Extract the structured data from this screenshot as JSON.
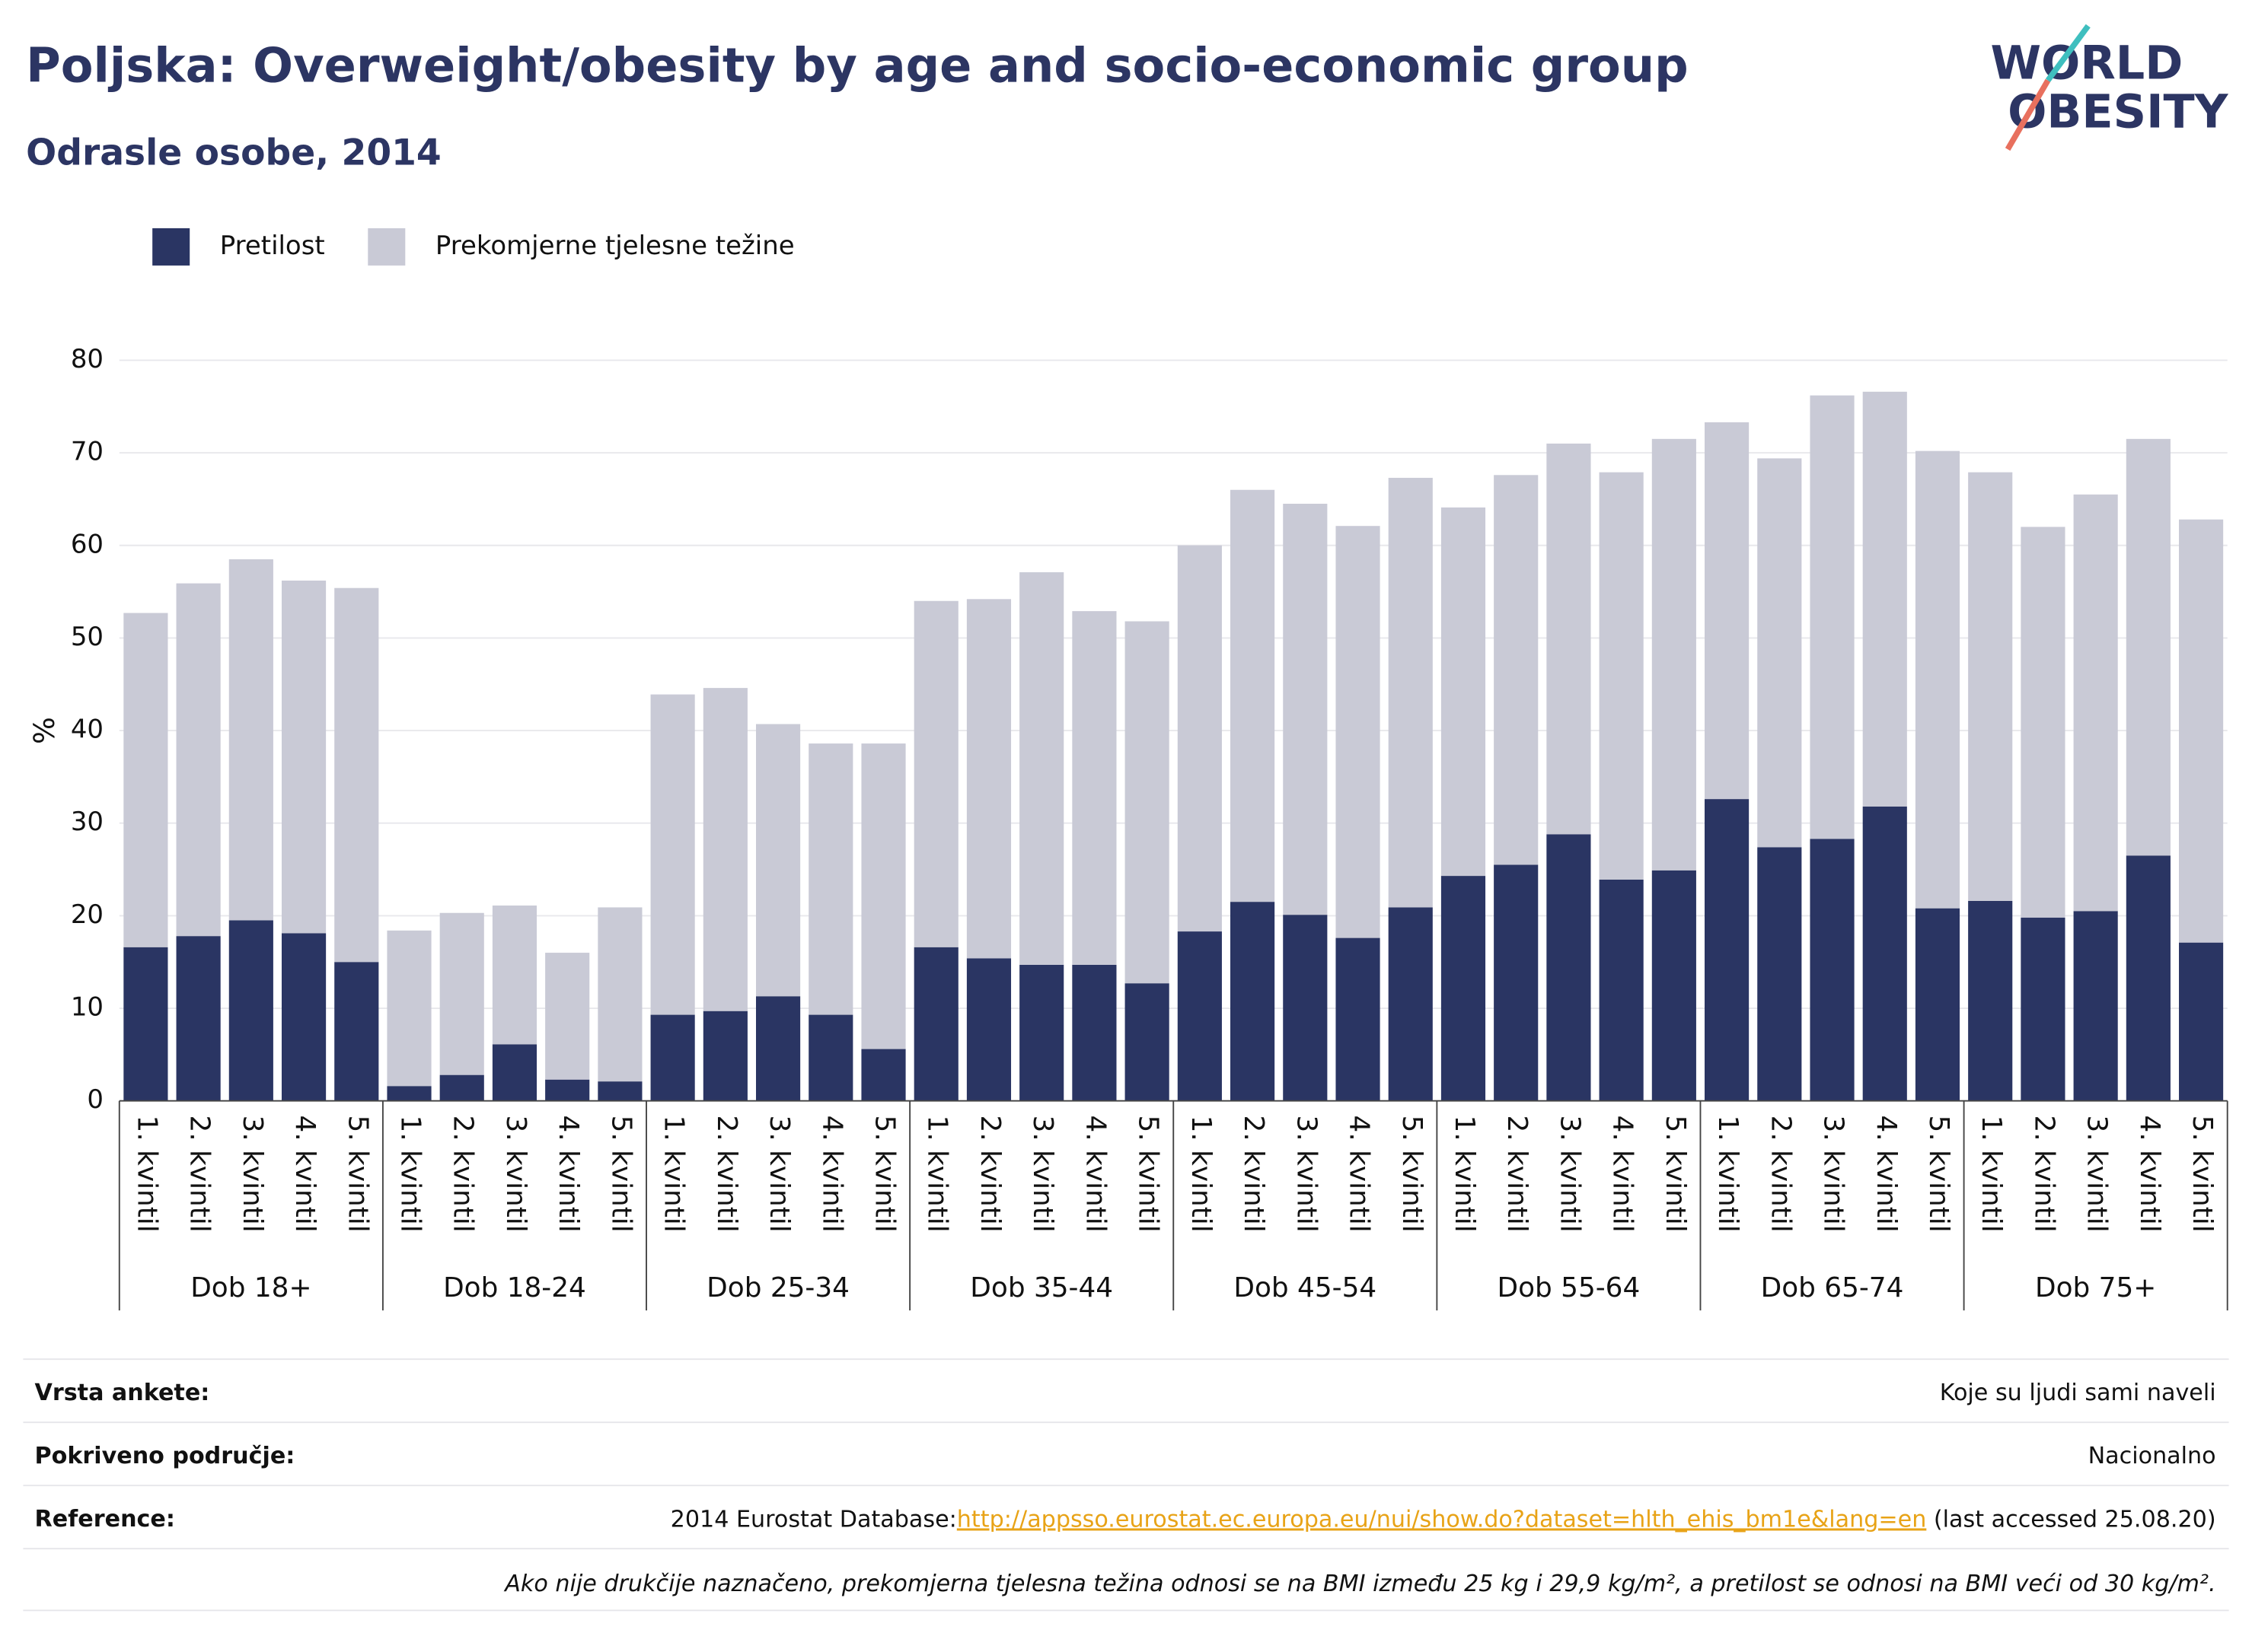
{
  "chart_data": {
    "type": "stacked_bar",
    "title": "Poljska: Overweight/obesity by age and socio-economic group",
    "subtitle": "Odrasle osobe, 2014",
    "y_label": "%",
    "groups": [
      {
        "name": "Dob 18+",
        "categories": [
          "1. kvintil",
          "2. kvintil",
          "3. kvintil",
          "4. kvintil",
          "5. kvintil"
        ]
      },
      {
        "name": "Dob 18-24",
        "categories": [
          "1. kvintil",
          "2. kvintil",
          "3. kvintil",
          "4. kvintil",
          "5. kvintil"
        ]
      },
      {
        "name": "Dob 25-34",
        "categories": [
          "1. kvintil",
          "2. kvintil",
          "3. kvintil",
          "4. kvintil",
          "5. kvintil"
        ]
      },
      {
        "name": "Dob 35-44",
        "categories": [
          "1. kvintil",
          "2. kvintil",
          "3. kvintil",
          "4. kvintil",
          "5. kvintil"
        ]
      },
      {
        "name": "Dob 45-54",
        "categories": [
          "1. kvintil",
          "2. kvintil",
          "3. kvintil",
          "4. kvintil",
          "5. kvintil"
        ]
      },
      {
        "name": "Dob 55-64",
        "categories": [
          "1. kvintil",
          "2. kvintil",
          "3. kvintil",
          "4. kvintil",
          "5. kvintil"
        ]
      },
      {
        "name": "Dob 65-74",
        "categories": [
          "1. kvintil",
          "2. kvintil",
          "3. kvintil",
          "4. kvintil",
          "5. kvintil"
        ]
      },
      {
        "name": "Dob 75+",
        "categories": [
          "1. kvintil",
          "2. kvintil",
          "3. kvintil",
          "4. kvintil",
          "5. kvintil"
        ]
      }
    ],
    "series": [
      {
        "name": "Pretilost",
        "color": "#2a3563",
        "values": [
          16.6,
          17.8,
          19.5,
          18.1,
          15.0,
          1.6,
          2.8,
          6.1,
          2.3,
          2.1,
          9.3,
          9.7,
          11.3,
          9.3,
          5.6,
          16.6,
          15.4,
          14.7,
          14.7,
          12.7,
          18.3,
          21.5,
          20.1,
          17.6,
          20.9,
          24.3,
          25.5,
          28.8,
          23.9,
          24.9,
          32.6,
          27.4,
          28.3,
          31.8,
          20.8,
          21.6,
          19.8,
          20.5,
          26.5,
          17.1
        ]
      },
      {
        "name": "Prekomjerne tjelesne težine",
        "color": "#c9cad6",
        "values": [
          36.1,
          38.1,
          39.0,
          38.1,
          40.4,
          16.8,
          17.5,
          15.0,
          13.7,
          18.8,
          34.6,
          34.9,
          29.4,
          29.3,
          33.0,
          37.4,
          38.8,
          42.4,
          38.2,
          39.1,
          41.7,
          44.5,
          44.4,
          44.5,
          46.4,
          39.8,
          42.1,
          42.2,
          44.0,
          46.6,
          40.7,
          42.0,
          47.9,
          44.8,
          49.4,
          46.3,
          42.2,
          45.0,
          45.0,
          45.7
        ]
      }
    ],
    "ylim": [
      0,
      80
    ],
    "yticks": [
      0,
      10,
      20,
      30,
      40,
      50,
      60,
      70,
      80
    ],
    "grid": true
  },
  "logo": {
    "line1": "WORLD",
    "line2": "OBESITY"
  },
  "footer": {
    "rows": [
      {
        "label": "Vrsta ankete:",
        "value": "Koje su ljudi sami naveli"
      },
      {
        "label": "Pokriveno područje:",
        "value": "Nacionalno"
      },
      {
        "label": "Reference:",
        "prefix": "2014 Eurostat Database:",
        "link": "http://appsso.eurostat.ec.europa.eu/nui/show.do?dataset=hlth_ehis_bm1e&lang=en",
        "suffix": " (last accessed 25.08.20)"
      }
    ],
    "note": "Ako nije drukčije naznačeno, prekomjerna tjelesna težina odnosi se na BMI između 25 kg i 29,9 kg/m², a pretilost se odnosi na BMI veći od 30 kg/m²."
  }
}
